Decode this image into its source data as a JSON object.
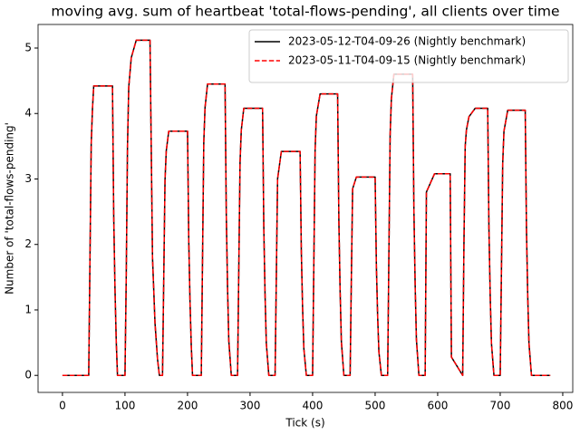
{
  "chart_data": {
    "type": "line",
    "title": "moving avg. sum of heartbeat 'total-flows-pending', all clients over time",
    "xlabel": "Tick (s)",
    "ylabel": "Number of 'total-flows-pending'",
    "x": [
      0,
      42,
      44,
      46,
      48,
      50,
      80,
      82,
      84,
      86,
      88,
      100,
      102,
      104,
      106,
      110,
      118,
      140,
      144,
      148,
      152,
      155,
      160,
      162,
      164,
      166,
      170,
      200,
      202,
      204,
      206,
      208,
      222,
      224,
      226,
      228,
      232,
      260,
      262,
      264,
      266,
      270,
      280,
      282,
      284,
      286,
      290,
      320,
      322,
      324,
      326,
      330,
      340,
      342,
      344,
      350,
      380,
      382,
      384,
      386,
      390,
      400,
      402,
      404,
      406,
      412,
      440,
      442,
      444,
      446,
      450,
      460,
      462,
      464,
      470,
      500,
      502,
      504,
      506,
      510,
      520,
      522,
      524,
      526,
      530,
      560,
      562,
      564,
      566,
      570,
      580,
      582,
      595,
      620,
      622,
      640,
      642,
      644,
      646,
      650,
      660,
      680,
      682,
      684,
      686,
      690,
      700,
      702,
      704,
      706,
      712,
      740,
      742,
      744,
      746,
      750,
      780
    ],
    "series": [
      {
        "name": "2023-05-12-T04-09-26 (Nightly benchmark)",
        "color": "#000000",
        "style": "solid",
        "values": [
          0,
          0,
          1.77,
          3.54,
          4.07,
          4.42,
          4.42,
          2.43,
          1.33,
          0.53,
          0,
          0,
          1.5,
          3.5,
          4.4,
          4.85,
          5.12,
          5.12,
          1.8,
          0.8,
          0.25,
          0,
          0,
          1.49,
          2.98,
          3.43,
          3.73,
          3.73,
          2.05,
          1.12,
          0.45,
          0,
          0,
          1.78,
          3.56,
          4.09,
          4.45,
          4.45,
          2.45,
          1.34,
          0.53,
          0,
          0,
          1.63,
          3.26,
          3.75,
          4.08,
          4.08,
          2.24,
          1.22,
          0.49,
          0,
          0,
          1.5,
          3.0,
          3.42,
          3.42,
          1.88,
          1.03,
          0.41,
          0,
          0,
          1.72,
          3.44,
          3.96,
          4.3,
          4.3,
          2.37,
          1.29,
          0.52,
          0,
          0,
          1.5,
          2.85,
          3.03,
          3.03,
          1.67,
          0.91,
          0.36,
          0,
          0,
          1.84,
          3.68,
          4.23,
          4.6,
          4.6,
          2.53,
          1.38,
          0.55,
          0,
          0,
          2.8,
          3.08,
          3.08,
          0.28,
          0,
          2.0,
          3.5,
          3.75,
          3.95,
          4.08,
          4.08,
          2.24,
          1.22,
          0.49,
          0,
          0,
          1.62,
          3.24,
          3.73,
          4.05,
          4.05,
          2.23,
          1.22,
          0.49,
          0,
          0
        ]
      },
      {
        "name": "2023-05-11-T04-09-15 (Nightly benchmark)",
        "color": "#ff0000",
        "style": "dashed",
        "values": [
          0,
          0,
          1.77,
          3.54,
          4.07,
          4.42,
          4.42,
          2.43,
          1.33,
          0.53,
          0,
          0,
          1.5,
          3.5,
          4.4,
          4.85,
          5.12,
          5.12,
          1.8,
          0.8,
          0.25,
          0,
          0,
          1.49,
          2.98,
          3.43,
          3.73,
          3.73,
          2.05,
          1.12,
          0.45,
          0,
          0,
          1.78,
          3.56,
          4.09,
          4.45,
          4.45,
          2.45,
          1.34,
          0.53,
          0,
          0,
          1.63,
          3.26,
          3.75,
          4.08,
          4.08,
          2.24,
          1.22,
          0.49,
          0,
          0,
          1.5,
          3.0,
          3.42,
          3.42,
          1.88,
          1.03,
          0.41,
          0,
          0,
          1.72,
          3.44,
          3.96,
          4.3,
          4.3,
          2.37,
          1.29,
          0.52,
          0,
          0,
          1.5,
          2.85,
          3.03,
          3.03,
          1.67,
          0.91,
          0.36,
          0,
          0,
          1.84,
          3.68,
          4.23,
          4.6,
          4.6,
          2.53,
          1.38,
          0.55,
          0,
          0,
          2.8,
          3.08,
          3.08,
          0.28,
          0,
          2.0,
          3.5,
          3.75,
          3.95,
          4.08,
          4.08,
          2.24,
          1.22,
          0.49,
          0,
          0,
          1.62,
          3.24,
          3.73,
          4.05,
          4.05,
          2.23,
          1.22,
          0.49,
          0,
          0
        ]
      }
    ],
    "xlim": [
      -39,
      816
    ],
    "ylim": [
      -0.26,
      5.36
    ],
    "xticks": [
      0,
      100,
      200,
      300,
      400,
      500,
      600,
      700,
      800
    ],
    "yticks": [
      0,
      1,
      2,
      3,
      4,
      5
    ],
    "legend": "upper right",
    "grid": false
  }
}
